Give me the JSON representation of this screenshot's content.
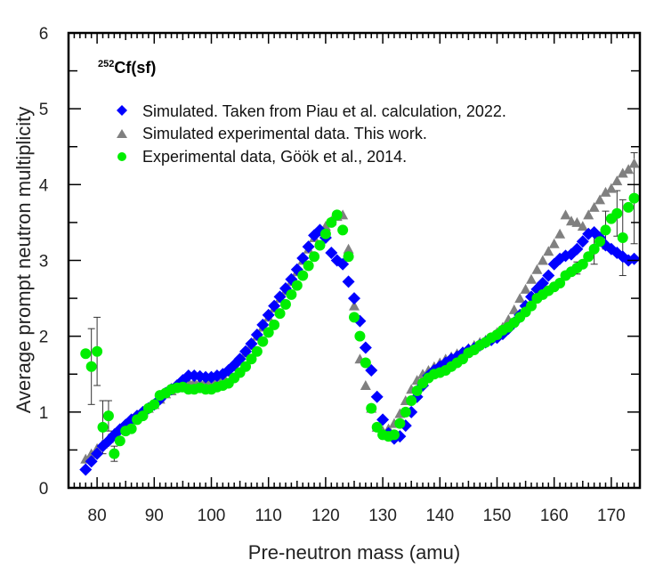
{
  "chart_data": {
    "type": "scatter",
    "title": "",
    "annotation": {
      "superscript": "252",
      "text": "Cf(sf)"
    },
    "xlabel": "Pre-neutron mass (amu)",
    "ylabel": "Average prompt neutron multiplicity",
    "xlim": [
      75,
      175
    ],
    "ylim": [
      0,
      6
    ],
    "xticks": [
      80,
      90,
      100,
      110,
      120,
      130,
      140,
      150,
      160,
      170
    ],
    "yticks": [
      0,
      1,
      2,
      3,
      4,
      5,
      6
    ],
    "grid": false,
    "legend_position": "top-left",
    "series": [
      {
        "name": "Simulated. Taken from Piau et al. calculation, 2022.",
        "marker": "diamond",
        "color": "#0000ff",
        "x_start": 78,
        "y": [
          0.24,
          0.35,
          0.45,
          0.55,
          0.62,
          0.7,
          0.77,
          0.83,
          0.9,
          0.95,
          1.0,
          1.05,
          1.1,
          1.17,
          1.25,
          1.3,
          1.35,
          1.42,
          1.48,
          1.48,
          1.47,
          1.46,
          1.46,
          1.48,
          1.5,
          1.55,
          1.62,
          1.7,
          1.8,
          1.9,
          2.02,
          2.15,
          2.28,
          2.4,
          2.52,
          2.63,
          2.75,
          2.88,
          3.03,
          3.18,
          3.33,
          3.4,
          3.3,
          3.1,
          3.0,
          2.95,
          2.72,
          2.5,
          2.2,
          1.85,
          1.55,
          1.2,
          0.9,
          0.72,
          0.65,
          0.68,
          0.82,
          1.0,
          1.2,
          1.35,
          1.48,
          1.55,
          1.6,
          1.65,
          1.7,
          1.73,
          1.78,
          1.82,
          1.84,
          1.88,
          1.92,
          1.95,
          1.98,
          2.03,
          2.1,
          2.18,
          2.28,
          2.4,
          2.52,
          2.62,
          2.7,
          2.8,
          2.95,
          3.02,
          3.06,
          3.08,
          3.15,
          3.25,
          3.35,
          3.37,
          3.3,
          3.2,
          3.15,
          3.1,
          3.05,
          3.0,
          3.02
        ]
      },
      {
        "name": "Simulated experimental data. This work.",
        "marker": "triangle",
        "color": "#808080",
        "x_start": 78,
        "y": [
          0.38,
          0.45,
          0.52,
          0.58,
          0.65,
          0.72,
          0.78,
          0.84,
          0.9,
          0.95,
          1.0,
          1.05,
          1.1,
          1.17,
          1.24,
          1.28,
          1.32,
          1.36,
          1.4,
          1.4,
          1.4,
          1.4,
          1.42,
          1.45,
          1.48,
          1.53,
          1.6,
          1.68,
          1.78,
          1.88,
          2.0,
          2.12,
          2.25,
          2.37,
          2.5,
          2.6,
          2.72,
          2.85,
          3.0,
          3.15,
          3.3,
          3.38,
          3.45,
          3.52,
          3.58,
          3.6,
          3.15,
          2.4,
          1.7,
          1.35,
          1.05,
          0.8,
          0.75,
          0.78,
          0.85,
          0.98,
          1.15,
          1.3,
          1.42,
          1.5,
          1.55,
          1.6,
          1.65,
          1.7,
          1.73,
          1.77,
          1.8,
          1.84,
          1.88,
          1.92,
          1.95,
          1.98,
          2.05,
          2.12,
          2.22,
          2.35,
          2.5,
          2.62,
          2.75,
          2.88,
          3.0,
          3.12,
          3.22,
          3.35,
          3.6,
          3.52,
          3.5,
          3.45,
          3.6,
          3.7,
          3.8,
          3.9,
          3.95,
          4.05,
          4.15,
          4.2,
          4.28
        ]
      },
      {
        "name": "Experimental data, Göök et al., 2014.",
        "marker": "circle",
        "color": "#00ee00",
        "x_start": 78,
        "y": [
          1.77,
          1.6,
          1.8,
          0.8,
          0.95,
          0.45,
          0.62,
          0.75,
          0.78,
          0.9,
          0.95,
          1.05,
          1.1,
          1.22,
          1.25,
          1.3,
          1.32,
          1.33,
          1.3,
          1.3,
          1.32,
          1.3,
          1.3,
          1.33,
          1.35,
          1.38,
          1.45,
          1.52,
          1.6,
          1.7,
          1.8,
          1.93,
          2.05,
          2.15,
          2.3,
          2.42,
          2.55,
          2.67,
          2.8,
          2.93,
          3.05,
          3.2,
          3.35,
          3.5,
          3.6,
          3.4,
          3.05,
          2.25,
          2.0,
          1.65,
          1.05,
          0.8,
          0.7,
          0.68,
          0.7,
          0.85,
          1.0,
          1.15,
          1.28,
          1.38,
          1.45,
          1.5,
          1.52,
          1.55,
          1.6,
          1.65,
          1.7,
          1.78,
          1.82,
          1.88,
          1.92,
          1.98,
          2.02,
          2.08,
          2.12,
          2.18,
          2.25,
          2.32,
          2.4,
          2.5,
          2.55,
          2.6,
          2.65,
          2.7,
          2.8,
          2.85,
          2.9,
          2.95,
          3.05,
          3.15,
          3.25,
          3.4,
          3.55,
          3.62,
          3.3,
          3.7,
          3.82
        ],
        "error_bars": [
          {
            "x": 79,
            "y": 1.6,
            "err": 0.5
          },
          {
            "x": 80,
            "y": 1.8,
            "err": 0.45
          },
          {
            "x": 81,
            "y": 0.8,
            "err": 0.35
          },
          {
            "x": 82,
            "y": 0.95,
            "err": 0.2
          },
          {
            "x": 83,
            "y": 0.45,
            "err": 0.1
          },
          {
            "x": 85,
            "y": 0.75,
            "err": 0.05
          },
          {
            "x": 164,
            "y": 2.9,
            "err": 0.08
          },
          {
            "x": 167,
            "y": 3.15,
            "err": 0.2
          },
          {
            "x": 169,
            "y": 3.4,
            "err": 0.25
          },
          {
            "x": 171,
            "y": 3.62,
            "err": 0.3
          },
          {
            "x": 172,
            "y": 3.3,
            "err": 0.5
          },
          {
            "x": 174,
            "y": 3.82,
            "err": 0.6
          }
        ]
      }
    ]
  }
}
